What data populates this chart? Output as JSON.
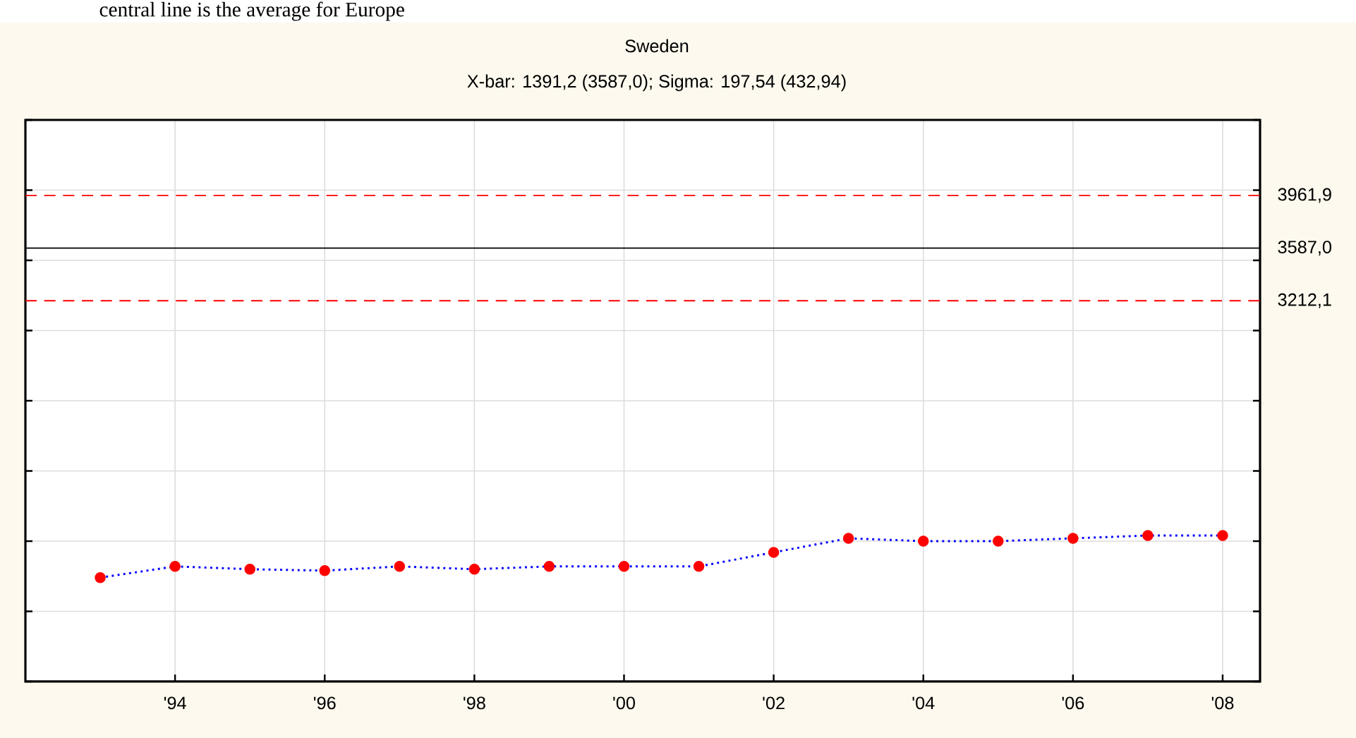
{
  "chart_data": {
    "type": "line",
    "title": "Sweden",
    "subtitle": "X-bar: 1391,2 (3587,0); Sigma: 197,54 (432,94)",
    "annotations": [
      "central line is the average for Europe"
    ],
    "x": [
      1993,
      1994,
      1995,
      1996,
      1997,
      1998,
      1999,
      2000,
      2001,
      2002,
      2003,
      2004,
      2005,
      2006,
      2007,
      2008
    ],
    "series": [
      {
        "color": "#0000ff",
        "colors": [
          "#ff0000",
          "#ff0000",
          "#ff0000",
          "#ff0000",
          "#ff0000",
          "#ff0000",
          "#ff0000",
          "#ff0000",
          "#ff0000",
          "#ff0000",
          "#ff0000",
          "#ff0000",
          "#ff0000",
          "#ff0000",
          "#ff0000",
          "#ff0000"
        ],
        "values": [
          1240,
          1320,
          1300,
          1290,
          1320,
          1300,
          1320,
          1320,
          1320,
          1420,
          1520,
          1500,
          1500,
          1520,
          1540,
          1540
        ]
      }
    ],
    "marker": "circle",
    "line_style": "dotted",
    "grid": true,
    "tick_labels": "x",
    "xlim": [
      1992,
      2008.5
    ],
    "ylim": [
      500,
      4500
    ],
    "xticks": [
      {
        "value": 1994,
        "label": "'94"
      },
      {
        "value": 1996,
        "label": "'96"
      },
      {
        "value": 1998,
        "label": "'98"
      },
      {
        "value": 2000,
        "label": "'00"
      },
      {
        "value": 2002,
        "label": "'02"
      },
      {
        "value": 2004,
        "label": "'04"
      },
      {
        "value": 2006,
        "label": "'06"
      },
      {
        "value": 2008,
        "label": "'08"
      }
    ],
    "yticks": [
      {
        "value": 500,
        "label": null
      },
      {
        "value": 1000,
        "label": null
      },
      {
        "value": 1500,
        "label": null
      },
      {
        "value": 2000,
        "label": null
      },
      {
        "value": 2500,
        "label": null
      },
      {
        "value": 3000,
        "label": null
      },
      {
        "value": 3500,
        "label": null
      },
      {
        "value": 4000,
        "label": null
      },
      {
        "value": 4500,
        "label": null
      }
    ],
    "ref_lines": [
      {
        "axis": "y",
        "value": 3961.9,
        "label": "3961,9",
        "color": "#ff0000",
        "line_style": "dashed"
      },
      {
        "axis": "y",
        "value": 3587.0,
        "label": "3587,0",
        "color": "#000000",
        "line_style": "solid"
      },
      {
        "axis": "y",
        "value": 3212.1,
        "label": "3212,1",
        "color": "#ff0000",
        "line_style": "dashed"
      }
    ]
  }
}
